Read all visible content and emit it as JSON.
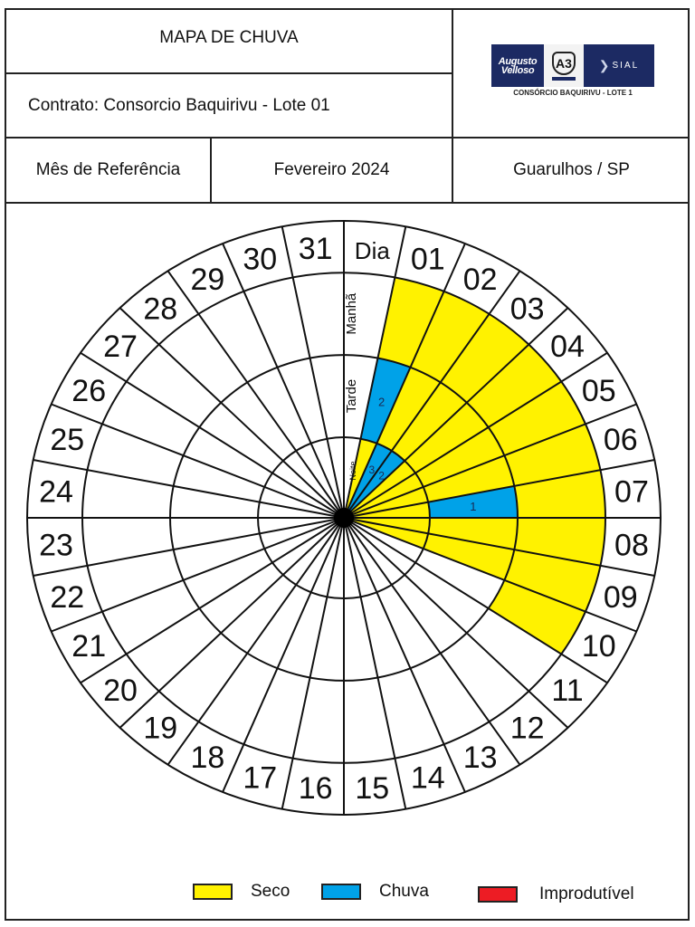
{
  "header": {
    "title": "MAPA DE CHUVA",
    "contract": "Contrato: Consorcio Baquirivu - Lote 01",
    "reference_label": "Mês de Referência",
    "reference_month": "Fevereiro 2024",
    "location": "Guarulhos / SP"
  },
  "logo": {
    "brand_left_line1": "Augusto",
    "brand_left_line2": "Velloso",
    "brand_center": "A3",
    "brand_right": "SIAL",
    "caption": "CONSÓRCIO BAQUIRIVU - LOTE 1"
  },
  "chart_data": {
    "type": "polar-calendar",
    "title": "MAPA DE CHUVA",
    "month": "Fevereiro 2024",
    "header_label": "Dia",
    "ring_labels": [
      "Noite",
      "Tarde",
      "Manhã"
    ],
    "days": [
      "01",
      "02",
      "03",
      "04",
      "05",
      "06",
      "07",
      "08",
      "09",
      "10",
      "11",
      "12",
      "13",
      "14",
      "15",
      "16",
      "17",
      "18",
      "19",
      "20",
      "21",
      "22",
      "23",
      "24",
      "25",
      "26",
      "27",
      "28",
      "29",
      "30",
      "31"
    ],
    "status_colors": {
      "Seco": "#fff200",
      "Chuva": "#00a2e8",
      "Improdutível": "#ed1c24",
      "none": "#ffffff"
    },
    "records": [
      {
        "day": "01",
        "manha": "Seco",
        "tarde": "Chuva",
        "tarde_mm": "2",
        "noite": "Seco"
      },
      {
        "day": "02",
        "manha": "Seco",
        "tarde": "Seco",
        "noite": "Chuva",
        "noite_mm": "3"
      },
      {
        "day": "03",
        "manha": "Seco",
        "tarde": "Seco",
        "noite": "Chuva",
        "noite_mm": "2"
      },
      {
        "day": "04",
        "manha": "Seco",
        "tarde": "Seco",
        "noite": "Seco"
      },
      {
        "day": "05",
        "manha": "Seco",
        "tarde": "Seco",
        "noite": "Seco"
      },
      {
        "day": "06",
        "manha": "Seco",
        "tarde": "Seco",
        "noite": "Seco"
      },
      {
        "day": "07",
        "manha": "Seco",
        "tarde": "Chuva",
        "tarde_mm": "1",
        "noite": "Seco"
      },
      {
        "day": "08",
        "manha": "Seco",
        "tarde": "Seco",
        "noite": "Seco"
      },
      {
        "day": "09",
        "manha": "Seco",
        "tarde": "Seco",
        "noite": "Seco"
      },
      {
        "day": "10",
        "manha": "Seco",
        "tarde": "none",
        "noite": "none"
      }
    ]
  },
  "legend": [
    {
      "label": "Seco",
      "color": "#fff200"
    },
    {
      "label": "Chuva",
      "color": "#00a2e8"
    },
    {
      "label": "Improdutível",
      "color": "#ed1c24"
    }
  ]
}
